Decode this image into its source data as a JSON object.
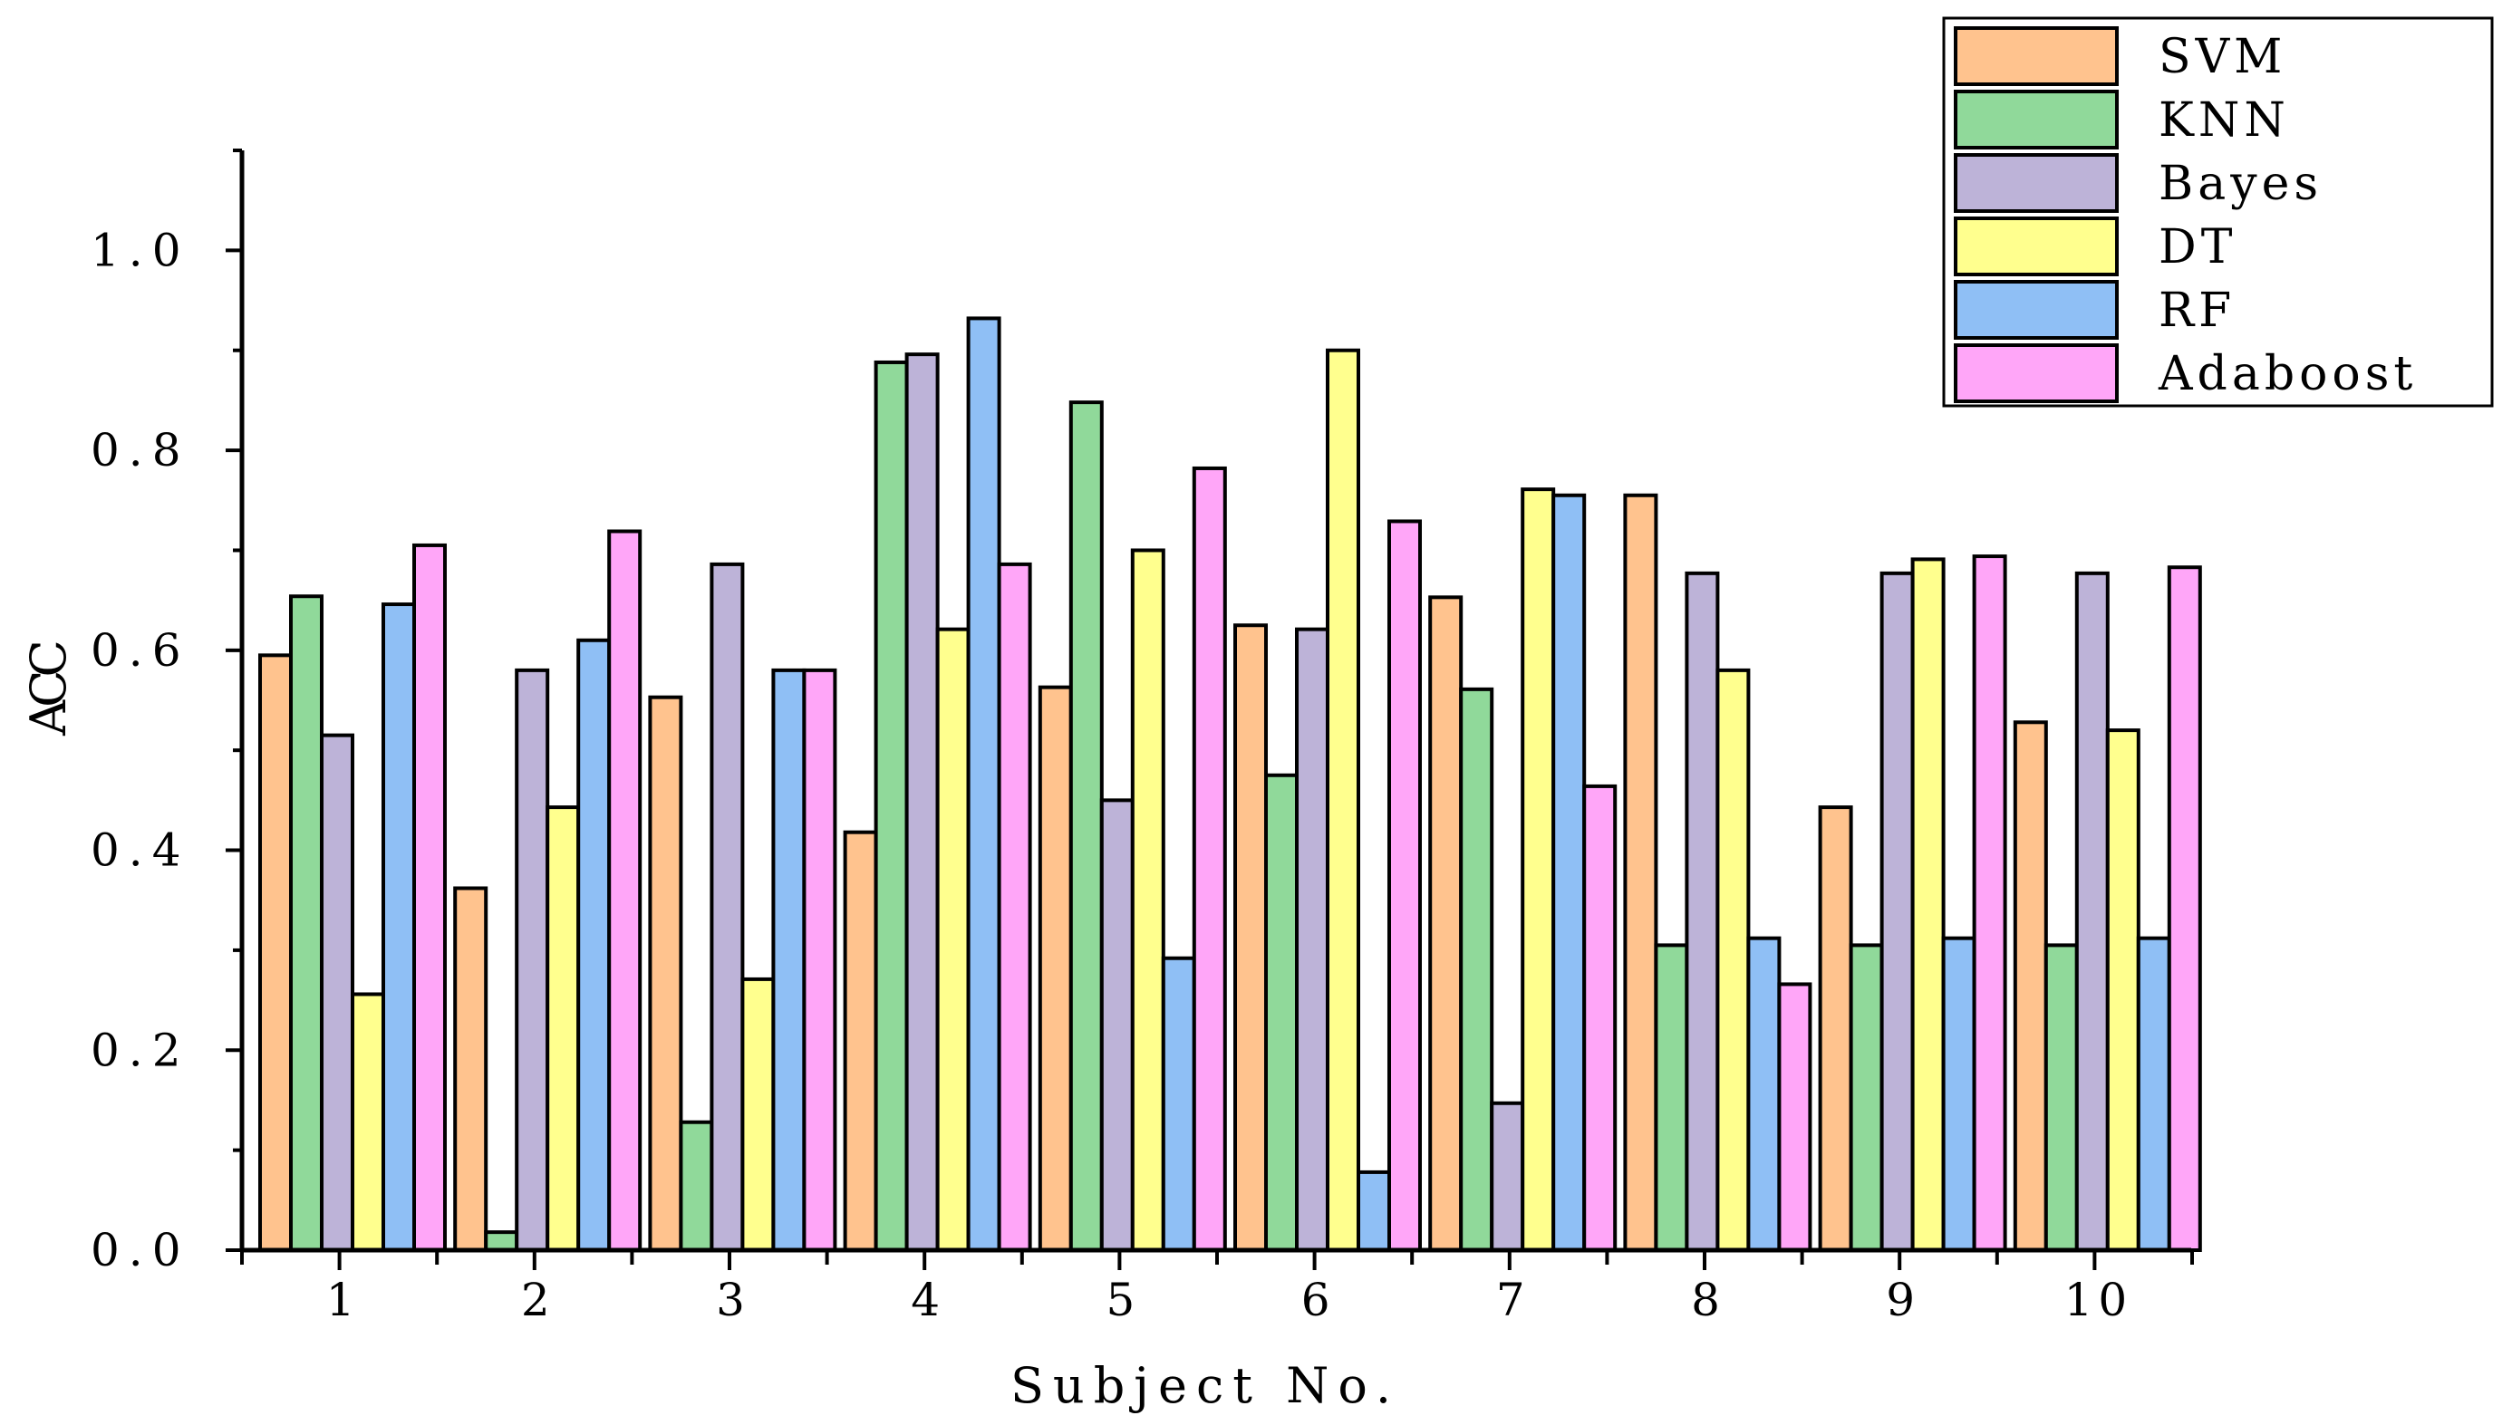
{
  "chart_data": {
    "type": "bar",
    "title": "",
    "xlabel": "Subject No.",
    "ylabel": "ACC",
    "ylim": [
      0,
      1.1
    ],
    "yticks": [
      "0.0",
      "0.2",
      "0.4",
      "0.6",
      "0.8",
      "1.0"
    ],
    "categories": [
      "1",
      "2",
      "3",
      "4",
      "5",
      "6",
      "7",
      "8",
      "9",
      "10"
    ],
    "legend_position": "top-right",
    "series": [
      {
        "name": "SVM",
        "color": "#FFC38E",
        "values": [
          0.595,
          0.362,
          0.553,
          0.418,
          0.563,
          0.625,
          0.653,
          0.755,
          0.443,
          0.528
        ]
      },
      {
        "name": "KNN",
        "color": "#90D99A",
        "values": [
          0.654,
          0.018,
          0.128,
          0.888,
          0.848,
          0.475,
          0.561,
          0.305,
          0.305,
          0.305
        ]
      },
      {
        "name": "Bayes",
        "color": "#BDB3D8",
        "values": [
          0.515,
          0.58,
          0.686,
          0.896,
          0.45,
          0.621,
          0.147,
          0.677,
          0.677,
          0.677
        ]
      },
      {
        "name": "DT",
        "color": "#FFFF8E",
        "values": [
          0.256,
          0.443,
          0.271,
          0.621,
          0.7,
          0.9,
          0.761,
          0.58,
          0.691,
          0.52
        ]
      },
      {
        "name": "RF",
        "color": "#8FBFF5",
        "values": [
          0.646,
          0.61,
          0.58,
          0.932,
          0.292,
          0.078,
          0.755,
          0.312,
          0.312,
          0.312
        ]
      },
      {
        "name": "Adaboost",
        "color": "#FFA6F8",
        "values": [
          0.705,
          0.719,
          0.58,
          0.686,
          0.782,
          0.729,
          0.464,
          0.266,
          0.694,
          0.683
        ]
      }
    ]
  }
}
